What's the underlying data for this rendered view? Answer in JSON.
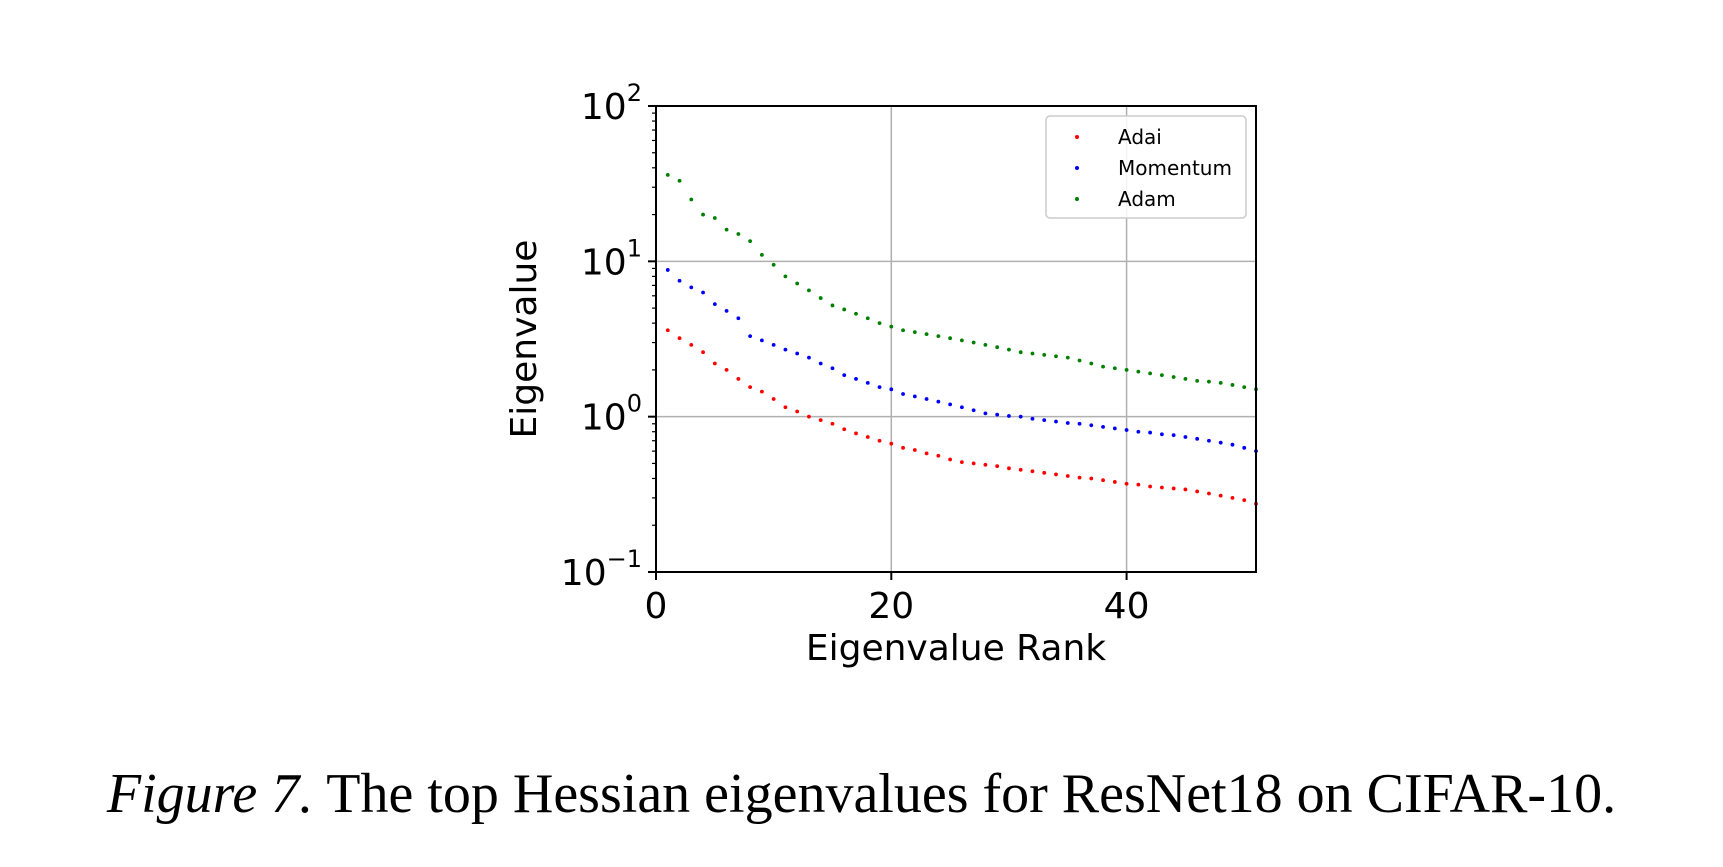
{
  "caption": {
    "figure_label": "Figure 7.",
    "text": "The top Hessian eigenvalues for ResNet18 on CIFAR-10."
  },
  "chart_data": {
    "type": "scatter",
    "xlabel": "Eigenvalue Rank",
    "ylabel": "Eigenvalue",
    "xlim": [
      0,
      51
    ],
    "ylim": [
      0.1,
      100
    ],
    "y_scale": "log",
    "grid": true,
    "legend_position": "top-right",
    "x_ticks": [
      "0",
      "20",
      "40"
    ],
    "y_ticks": [
      {
        "base": "10",
        "exp": "−1"
      },
      {
        "base": "10",
        "exp": "0"
      },
      {
        "base": "10",
        "exp": "1"
      },
      {
        "base": "10",
        "exp": "2"
      }
    ],
    "x": [
      1,
      2,
      3,
      4,
      5,
      6,
      7,
      8,
      9,
      10,
      11,
      12,
      13,
      14,
      15,
      16,
      17,
      18,
      19,
      20,
      21,
      22,
      23,
      24,
      25,
      26,
      27,
      28,
      29,
      30,
      31,
      32,
      33,
      34,
      35,
      36,
      37,
      38,
      39,
      40,
      41,
      42,
      43,
      44,
      45,
      46,
      47,
      48,
      49,
      50,
      51
    ],
    "series": [
      {
        "name": "Adai",
        "color": "#ff0000",
        "values": [
          3.6,
          3.2,
          2.9,
          2.6,
          2.2,
          2.0,
          1.75,
          1.55,
          1.45,
          1.3,
          1.15,
          1.08,
          1.0,
          0.95,
          0.9,
          0.83,
          0.78,
          0.74,
          0.7,
          0.67,
          0.63,
          0.61,
          0.58,
          0.56,
          0.53,
          0.51,
          0.5,
          0.49,
          0.48,
          0.465,
          0.455,
          0.445,
          0.435,
          0.425,
          0.415,
          0.405,
          0.4,
          0.39,
          0.38,
          0.37,
          0.365,
          0.355,
          0.35,
          0.345,
          0.34,
          0.33,
          0.32,
          0.31,
          0.3,
          0.29,
          0.275
        ]
      },
      {
        "name": "Momentum",
        "color": "#0000ff",
        "values": [
          8.8,
          7.5,
          6.8,
          6.3,
          5.3,
          4.8,
          4.3,
          3.3,
          3.1,
          2.9,
          2.7,
          2.55,
          2.4,
          2.2,
          2.05,
          1.85,
          1.75,
          1.65,
          1.55,
          1.5,
          1.4,
          1.35,
          1.3,
          1.25,
          1.2,
          1.15,
          1.1,
          1.05,
          1.03,
          1.01,
          1.0,
          0.97,
          0.95,
          0.93,
          0.91,
          0.9,
          0.88,
          0.86,
          0.84,
          0.82,
          0.8,
          0.79,
          0.77,
          0.76,
          0.74,
          0.72,
          0.7,
          0.68,
          0.66,
          0.63,
          0.6
        ]
      },
      {
        "name": "Adam",
        "color": "#008000",
        "values": [
          36,
          33,
          25,
          20,
          19,
          16,
          15,
          13.5,
          11,
          9.5,
          8,
          7.2,
          6.5,
          5.8,
          5.2,
          4.9,
          4.6,
          4.3,
          4.0,
          3.8,
          3.6,
          3.5,
          3.4,
          3.3,
          3.2,
          3.1,
          3.0,
          2.9,
          2.8,
          2.7,
          2.6,
          2.55,
          2.5,
          2.45,
          2.4,
          2.3,
          2.2,
          2.1,
          2.05,
          2.0,
          1.95,
          1.9,
          1.85,
          1.8,
          1.75,
          1.7,
          1.68,
          1.65,
          1.6,
          1.55,
          1.5
        ]
      }
    ]
  }
}
